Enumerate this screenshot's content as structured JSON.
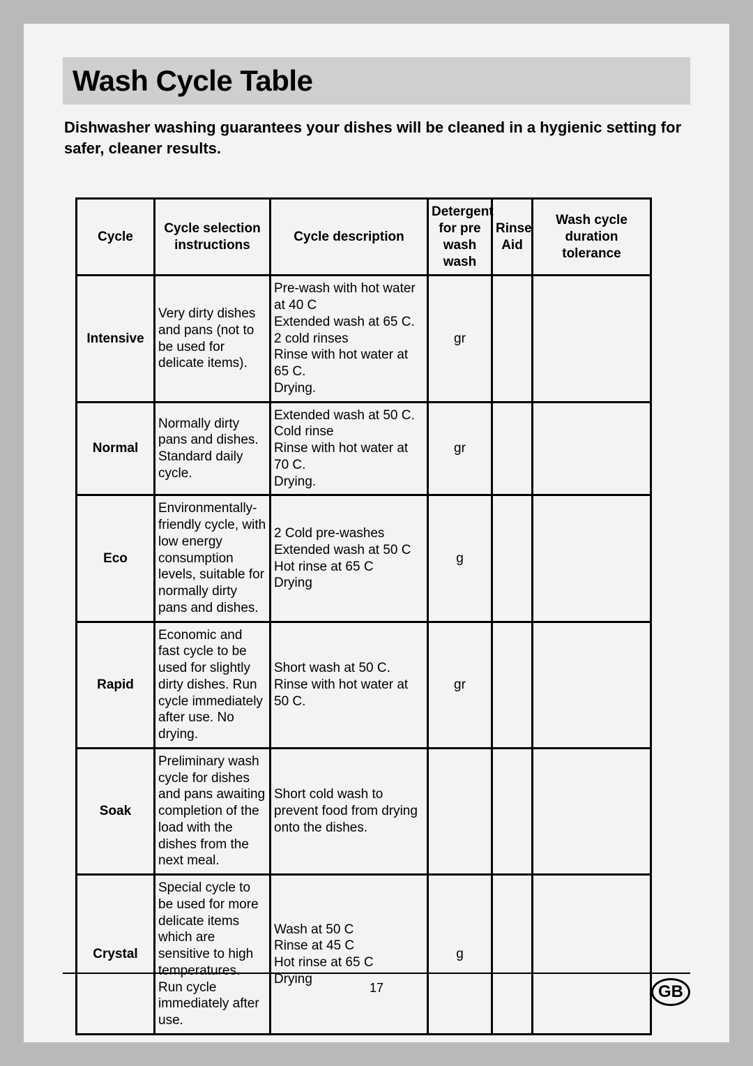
{
  "page": {
    "title": "Wash Cycle Table",
    "subtitle": "Dishwasher washing guarantees your dishes will be cleaned in a hygienic setting for safer, cleaner results.",
    "page_number": "17",
    "region_code": "GB"
  },
  "table": {
    "headers": {
      "cycle": "Cycle",
      "instructions": "Cycle selection instructions",
      "description": "Cycle description",
      "detergent": "Detergent for pre wash wash",
      "rinse_aid": "Rinse Aid",
      "duration": "Wash cycle duration tolerance"
    },
    "rows": [
      {
        "name": "Intensive",
        "instructions": "Very dirty dishes and pans (not to be used for delicate items).",
        "description": "Pre-wash with hot water at 40 C\nExtended wash at 65 C.\n2 cold rinses\nRinse with hot water at 65 C.\nDrying.",
        "detergent": "gr",
        "rinse_aid": "",
        "duration": ""
      },
      {
        "name": "Normal",
        "instructions": "Normally dirty pans and dishes. Standard daily cycle.",
        "description": "Extended wash at 50 C.\nCold rinse\nRinse with hot water at 70 C.\nDrying.",
        "detergent": "gr",
        "rinse_aid": "",
        "duration": ""
      },
      {
        "name": "Eco",
        "instructions": "Environmentally-friendly cycle, with low energy consumption levels, suitable for normally dirty pans and dishes.",
        "description": "2 Cold pre-washes\nExtended wash at 50 C\nHot rinse at 65 C\nDrying",
        "detergent": "g",
        "rinse_aid": "",
        "duration": ""
      },
      {
        "name": "Rapid",
        "instructions": "Economic and fast cycle to be used for slightly dirty dishes. Run cycle immediately after use. No drying.",
        "description": "Short wash at 50 C.\nRinse with hot water at 50 C.",
        "detergent": "gr",
        "rinse_aid": "",
        "duration": ""
      },
      {
        "name": "Soak",
        "instructions": "Preliminary wash cycle for dishes and pans awaiting completion of the load with the dishes from the next meal.",
        "description": "Short cold wash to prevent food from drying onto the dishes.",
        "detergent": "",
        "rinse_aid": "",
        "duration": ""
      },
      {
        "name": "Crystal",
        "instructions": "Special cycle to be used for more delicate items which are sensitive to high temperatures. Run cycle immediately after use.",
        "description": "Wash at 50 C\nRinse at 45 C\nHot rinse at 65 C\nDrying",
        "detergent": "g",
        "rinse_aid": "",
        "duration": ""
      }
    ]
  }
}
